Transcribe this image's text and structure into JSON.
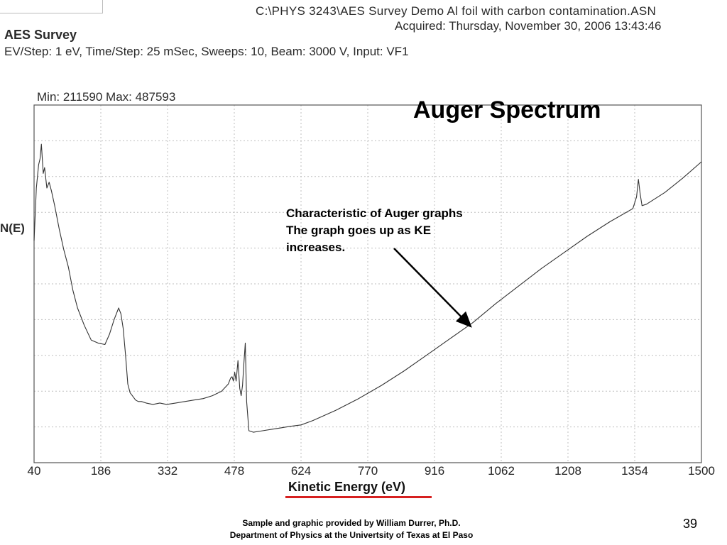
{
  "header": {
    "file_path": "C:\\PHYS 3243\\AES Survey Demo Al foil with carbon contamination.ASN",
    "acquired": "Acquired:  Thursday, November 30, 2006 13:43:46",
    "survey_title": "AES Survey",
    "params": "EV/Step: 1 eV,    Time/Step: 25 mSec,    Sweeps: 10,    Beam: 3000 V,    Input: VF1",
    "minmax": "Min: 211590     Max: 487593"
  },
  "annotation": {
    "line1": "Characteristic of Auger graphs",
    "line2": "The graph goes up as KE",
    "line3": "increases."
  },
  "footer": {
    "line1": "Sample and graphic provided by William Durrer, Ph.D.",
    "line2": "Department of Physics at the Univertsity of Texas at El Paso",
    "page_number": "39"
  },
  "colors": {
    "underline": "#d62020",
    "grid": "#bfbfbf",
    "trace": "#333333",
    "arrow": "#000000"
  },
  "chart_data": {
    "type": "line",
    "title": "Auger Spectrum",
    "xlabel": "Kinetic Energy (eV)",
    "ylabel": "N(E)",
    "xlim": [
      40,
      1500
    ],
    "ylim": [
      0,
      10
    ],
    "xticks": [
      40,
      186,
      332,
      478,
      624,
      770,
      916,
      1062,
      1208,
      1354,
      1500
    ],
    "grid": true,
    "series": [
      {
        "values_note": "",
        "x": [
          40,
          45,
          50,
          53,
          56,
          60,
          63,
          68,
          73,
          78,
          85,
          95,
          105,
          115,
          125,
          135,
          150,
          165,
          180,
          195,
          205,
          215,
          225,
          230,
          235,
          240,
          245,
          250,
          255,
          262,
          268,
          275,
          285,
          300,
          315,
          330,
          350,
          370,
          390,
          410,
          430,
          450,
          465,
          470,
          473,
          476,
          479,
          482,
          486,
          490,
          493,
          496,
          499,
          502,
          505,
          510,
          520,
          540,
          560,
          580,
          600,
          624,
          650,
          700,
          750,
          800,
          850,
          900,
          950,
          1000,
          1050,
          1100,
          1150,
          1200,
          1250,
          1300,
          1350,
          1358,
          1362,
          1366,
          1370,
          1380,
          1420,
          1460,
          1500
        ],
        "y": [
          6.5,
          8.3,
          9.1,
          9.3,
          9.8,
          8.8,
          9.0,
          8.3,
          8.5,
          8.2,
          7.7,
          6.9,
          6.2,
          5.6,
          4.8,
          4.2,
          3.6,
          3.1,
          3.0,
          2.95,
          3.3,
          3.8,
          4.2,
          4.0,
          3.5,
          2.6,
          1.6,
          1.3,
          1.2,
          1.05,
          1.0,
          1.0,
          0.95,
          0.9,
          0.95,
          0.9,
          0.95,
          1.0,
          1.05,
          1.1,
          1.2,
          1.35,
          1.6,
          1.8,
          1.85,
          1.7,
          2.0,
          1.7,
          2.4,
          1.45,
          1.2,
          1.55,
          2.3,
          3.0,
          1.0,
          0.0,
          -0.05,
          0.0,
          0.05,
          0.1,
          0.15,
          0.2,
          0.35,
          0.7,
          1.1,
          1.55,
          2.05,
          2.6,
          3.15,
          3.7,
          4.35,
          4.95,
          5.55,
          6.1,
          6.65,
          7.15,
          7.6,
          8.0,
          8.6,
          8.1,
          7.7,
          7.75,
          8.15,
          8.65,
          9.2
        ]
      }
    ]
  }
}
